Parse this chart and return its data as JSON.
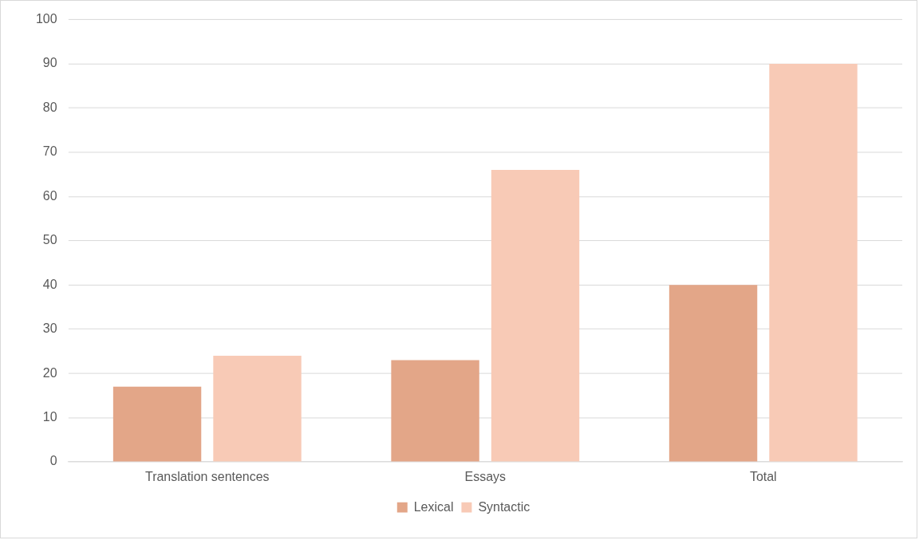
{
  "chart_data": {
    "type": "bar",
    "categories": [
      "Translation sentences",
      "Essays",
      "Total"
    ],
    "series": [
      {
        "name": "Lexical",
        "color": "#e3a688",
        "values": [
          17,
          23,
          40
        ]
      },
      {
        "name": "Syntactic",
        "color": "#f8cab6",
        "values": [
          24,
          66,
          90
        ]
      }
    ],
    "ylim": [
      0,
      100
    ],
    "yticks": [
      0,
      10,
      20,
      30,
      40,
      50,
      60,
      70,
      80,
      90,
      100
    ],
    "grid": "y",
    "legend": "bottom"
  }
}
